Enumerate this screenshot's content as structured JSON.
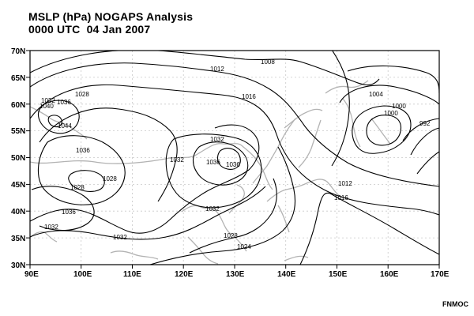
{
  "map": {
    "title_line1": "MSLP (hPa) NOGAPS Analysis",
    "title_line2": "0000 UTC  04 Jan 2007",
    "credit": "FNMOC",
    "lon_labels": [
      "90E",
      "100E",
      "110E",
      "120E",
      "130E",
      "140E",
      "150E",
      "160E",
      "170E"
    ],
    "lat_labels": [
      "70N",
      "65N",
      "60N",
      "55N",
      "50N",
      "45N",
      "40N",
      "35N",
      "30N"
    ],
    "contour_labels": [
      {
        "text": "1008"
      },
      {
        "text": "1012"
      },
      {
        "text": "1016"
      },
      {
        "text": "1004"
      },
      {
        "text": "1000"
      },
      {
        "text": "1000"
      },
      {
        "text": "992"
      },
      {
        "text": "1028"
      },
      {
        "text": "1032"
      },
      {
        "text": "1036"
      },
      {
        "text": "1040"
      },
      {
        "text": "1044"
      },
      {
        "text": "1036"
      },
      {
        "text": "1028"
      },
      {
        "text": "1028"
      },
      {
        "text": "1032"
      },
      {
        "text": "1032"
      },
      {
        "text": "1036"
      },
      {
        "text": "1036"
      },
      {
        "text": "1012"
      },
      {
        "text": "1016"
      },
      {
        "text": "1036"
      },
      {
        "text": "1032"
      },
      {
        "text": "1032"
      },
      {
        "text": "1032"
      },
      {
        "text": "1028"
      },
      {
        "text": "1024"
      }
    ],
    "colors": {
      "isobar": "#000000",
      "coastline": "#b3b3b3",
      "grid": "#c8c8c8"
    }
  }
}
